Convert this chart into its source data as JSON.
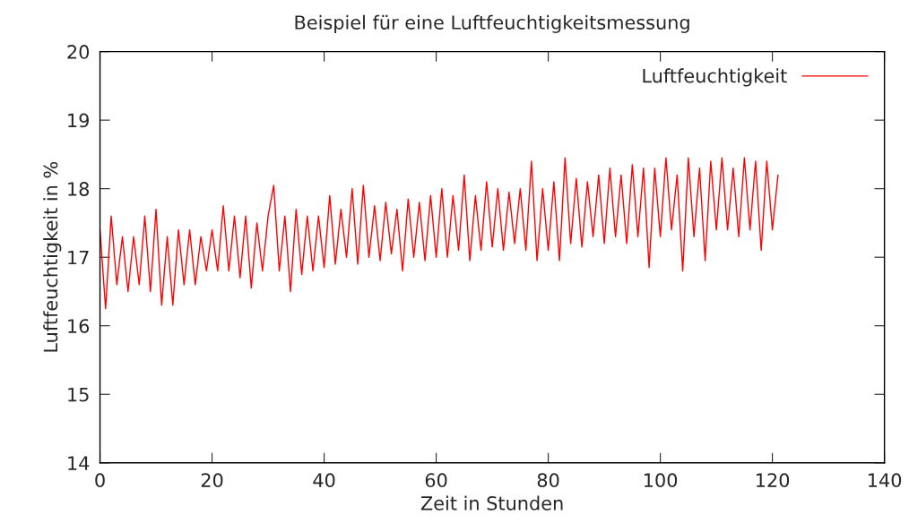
{
  "chart_data": {
    "type": "line",
    "title": "Beispiel für eine Luftfeuchtigkeitsmessung",
    "xlabel": "Zeit in Stunden",
    "ylabel": "Luftfeuchtigkeit in %",
    "x": [
      0,
      1,
      2,
      3,
      4,
      5,
      6,
      7,
      8,
      9,
      10,
      11,
      12,
      13,
      14,
      15,
      16,
      17,
      18,
      19,
      20,
      21,
      22,
      23,
      24,
      25,
      26,
      27,
      28,
      29,
      30,
      31,
      32,
      33,
      34,
      35,
      36,
      37,
      38,
      39,
      40,
      41,
      42,
      43,
      44,
      45,
      46,
      47,
      48,
      49,
      50,
      51,
      52,
      53,
      54,
      55,
      56,
      57,
      58,
      59,
      60,
      61,
      62,
      63,
      64,
      65,
      66,
      67,
      68,
      69,
      70,
      71,
      72,
      73,
      74,
      75,
      76,
      77,
      78,
      79,
      80,
      81,
      82,
      83,
      84,
      85,
      86,
      87,
      88,
      89,
      90,
      91,
      92,
      93,
      94,
      95,
      96,
      97,
      98,
      99,
      100,
      101,
      102,
      103,
      104,
      105,
      106,
      107,
      108,
      109,
      110,
      111,
      112,
      113,
      114,
      115,
      116,
      117,
      118,
      119,
      120,
      121
    ],
    "series": [
      {
        "name": "Luftfeuchtigkeit",
        "color": "#ff0000",
        "values": [
          17.4,
          16.25,
          17.6,
          16.6,
          17.3,
          16.5,
          17.3,
          16.6,
          17.6,
          16.5,
          17.7,
          16.3,
          17.3,
          16.3,
          17.4,
          16.6,
          17.4,
          16.6,
          17.3,
          16.8,
          17.4,
          16.8,
          17.75,
          16.8,
          17.6,
          16.7,
          17.6,
          16.55,
          17.5,
          16.8,
          17.6,
          18.05,
          16.8,
          17.6,
          16.5,
          17.7,
          16.75,
          17.6,
          16.8,
          17.6,
          16.85,
          17.9,
          16.9,
          17.7,
          17.0,
          18.0,
          16.9,
          18.05,
          17.0,
          17.75,
          16.95,
          17.8,
          17.05,
          17.7,
          16.8,
          17.85,
          17.0,
          17.8,
          16.95,
          17.9,
          17.0,
          18.0,
          17.0,
          17.9,
          17.1,
          18.2,
          16.95,
          17.9,
          17.1,
          18.1,
          17.15,
          18.0,
          17.1,
          17.95,
          17.2,
          18.0,
          17.1,
          18.4,
          16.95,
          18.0,
          17.1,
          18.1,
          16.95,
          18.45,
          17.2,
          18.15,
          17.15,
          18.1,
          17.3,
          18.2,
          17.2,
          18.3,
          17.3,
          18.2,
          17.2,
          18.35,
          17.3,
          18.3,
          16.85,
          18.3,
          17.3,
          18.45,
          17.4,
          18.2,
          16.8,
          18.45,
          17.3,
          18.3,
          16.95,
          18.4,
          17.4,
          18.45,
          17.4,
          18.3,
          17.3,
          18.45,
          17.4,
          18.4,
          17.1,
          18.4,
          17.4,
          18.2
        ]
      }
    ],
    "xlim": [
      0,
      140
    ],
    "xticks": [
      0,
      20,
      40,
      60,
      80,
      100,
      120,
      140
    ],
    "ylim": [
      14,
      20
    ],
    "yticks": [
      14,
      15,
      16,
      17,
      18,
      19,
      20
    ],
    "legend": "top right",
    "grid": false
  }
}
